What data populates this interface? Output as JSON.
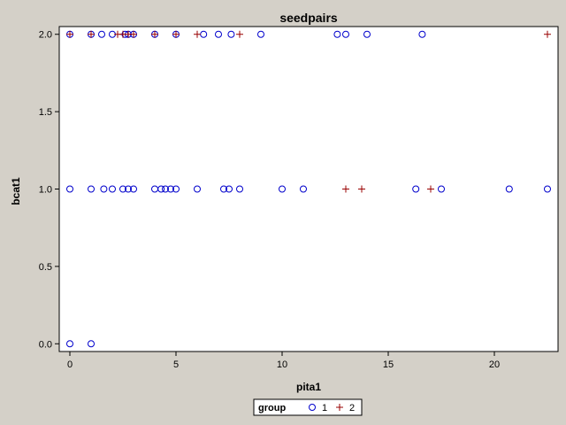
{
  "chart_data": {
    "type": "scatter",
    "title": "seedpairs",
    "xlabel": "pita1",
    "ylabel": "bcat1",
    "xlim": [
      -0.5,
      23
    ],
    "ylim": [
      -0.05,
      2.05
    ],
    "xticks": [
      0,
      5,
      10,
      15,
      20
    ],
    "xtick_labels": [
      "0",
      "5",
      "10",
      "15",
      "20"
    ],
    "yticks": [
      0,
      0.5,
      1,
      1.5,
      2
    ],
    "ytick_labels": [
      "0.0",
      "0.5",
      "1.0",
      "1.5",
      "2.0"
    ],
    "grid": false,
    "legend": {
      "title": "group",
      "placement": "bottom-center",
      "entries": [
        {
          "label": "1",
          "marker": "circle",
          "color": "#0000cc"
        },
        {
          "label": "2",
          "marker": "plus",
          "color": "#990000"
        }
      ]
    },
    "series": [
      {
        "name": "1",
        "marker": "circle",
        "color": "#0000cc",
        "points": [
          [
            0,
            2
          ],
          [
            1,
            2
          ],
          [
            1.5,
            2
          ],
          [
            2,
            2
          ],
          [
            2.6,
            2
          ],
          [
            2.75,
            2
          ],
          [
            3,
            2
          ],
          [
            4,
            2
          ],
          [
            5,
            2
          ],
          [
            6.3,
            2
          ],
          [
            7,
            2
          ],
          [
            7.6,
            2
          ],
          [
            9,
            2
          ],
          [
            12.6,
            2
          ],
          [
            13,
            2
          ],
          [
            14,
            2
          ],
          [
            16.6,
            2
          ],
          [
            0,
            1
          ],
          [
            1,
            1
          ],
          [
            1.6,
            1
          ],
          [
            2,
            1
          ],
          [
            2.5,
            1
          ],
          [
            2.75,
            1
          ],
          [
            3,
            1
          ],
          [
            4,
            1
          ],
          [
            4.3,
            1
          ],
          [
            4.5,
            1
          ],
          [
            4.75,
            1
          ],
          [
            5,
            1
          ],
          [
            6,
            1
          ],
          [
            7.25,
            1
          ],
          [
            7.5,
            1
          ],
          [
            8,
            1
          ],
          [
            10,
            1
          ],
          [
            11,
            1
          ],
          [
            16.3,
            1
          ],
          [
            17.5,
            1
          ],
          [
            20.7,
            1
          ],
          [
            22.5,
            1
          ],
          [
            0,
            0
          ],
          [
            1,
            0
          ]
        ]
      },
      {
        "name": "2",
        "marker": "plus",
        "color": "#990000",
        "points": [
          [
            0,
            2
          ],
          [
            1,
            2
          ],
          [
            2.25,
            2
          ],
          [
            2.5,
            2
          ],
          [
            2.75,
            2
          ],
          [
            3,
            2
          ],
          [
            4,
            2
          ],
          [
            5,
            2
          ],
          [
            6,
            2
          ],
          [
            8,
            2
          ],
          [
            22.5,
            2
          ],
          [
            13,
            1
          ],
          [
            13.75,
            1
          ],
          [
            17,
            1
          ]
        ]
      }
    ]
  }
}
